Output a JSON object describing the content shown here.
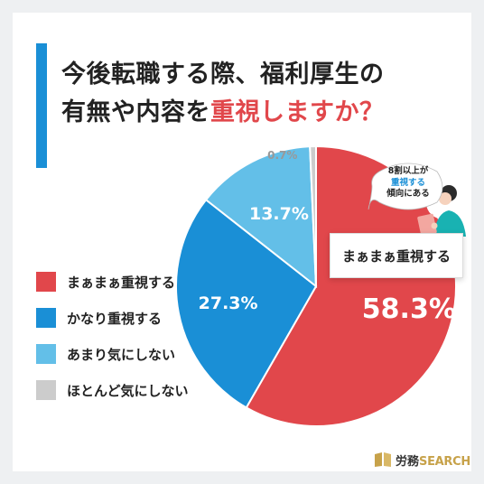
{
  "title": {
    "line1": "今後転職する際、福利厚生の",
    "line2_prefix": "有無や内容を",
    "line2_accent": "重視しますか？"
  },
  "chart_data": {
    "type": "pie",
    "title": "今後転職する際、福利厚生の有無や内容を重視しますか？",
    "start_angle_deg": 0,
    "direction": "clockwise",
    "slices": [
      {
        "label": "まぁまぁ重視する",
        "value": 58.3,
        "value_label": "58.3%",
        "color": "#e1474b"
      },
      {
        "label": "かなり重視する",
        "value": 27.3,
        "value_label": "27.3%",
        "color": "#1a8fd6"
      },
      {
        "label": "あまり気にしない",
        "value": 13.7,
        "value_label": "13.7%",
        "color": "#63bfe8"
      },
      {
        "label": "ほとんど気にしない",
        "value": 0.7,
        "value_label": "0.7%",
        "color": "#cccccc"
      }
    ]
  },
  "callout": {
    "text": "まぁまぁ重視する"
  },
  "bubble": {
    "line1": "8割以上が",
    "line2": "重視する",
    "line3": "傾向にある"
  },
  "brand": {
    "name_jp": "労務",
    "name_en": "SEARCH",
    "logo": "book-icon"
  }
}
